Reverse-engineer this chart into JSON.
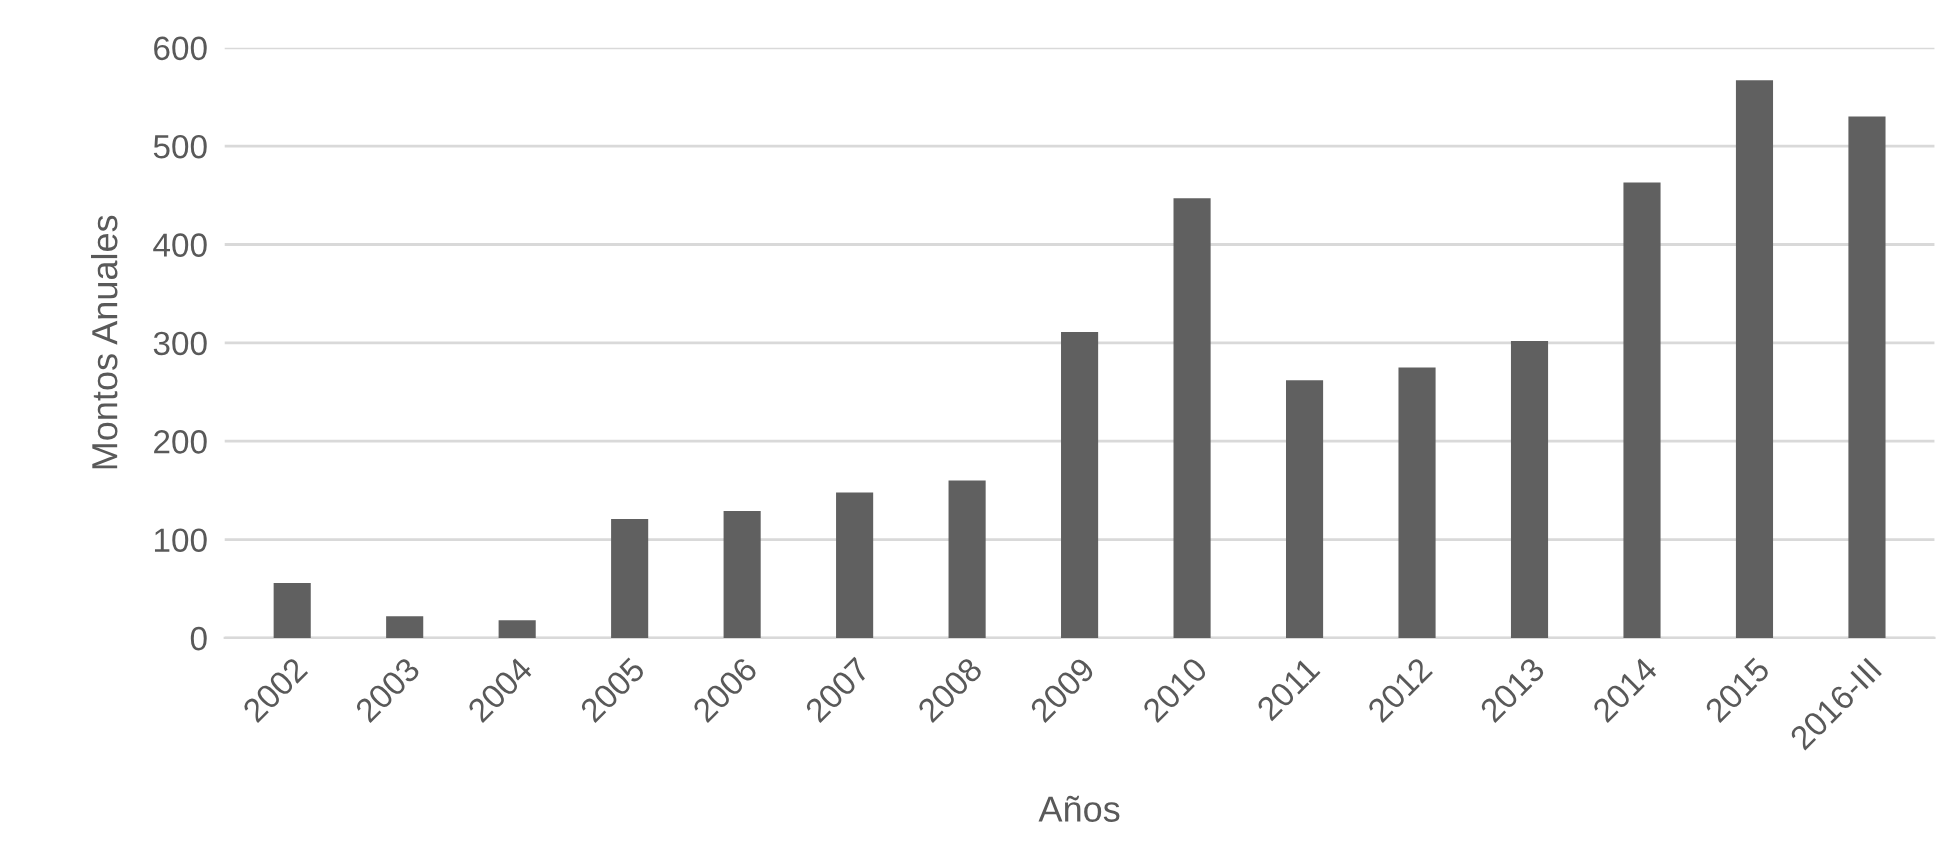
{
  "chart_data": {
    "type": "bar",
    "xlabel": "Años",
    "ylabel": "Montos Anuales",
    "categories": [
      "2002",
      "2003",
      "2004",
      "2005",
      "2006",
      "2007",
      "2008",
      "2009",
      "2010",
      "2011",
      "2012",
      "2013",
      "2014",
      "2015",
      "2016-III"
    ],
    "values": [
      56,
      22,
      18,
      121,
      129,
      148,
      160,
      311,
      447,
      262,
      275,
      302,
      463,
      567,
      530
    ],
    "color": "#606060",
    "ylim": [
      0,
      600
    ],
    "yticks": [
      0,
      100,
      200,
      300,
      400,
      500,
      600
    ],
    "grid": "y",
    "legend": false
  }
}
